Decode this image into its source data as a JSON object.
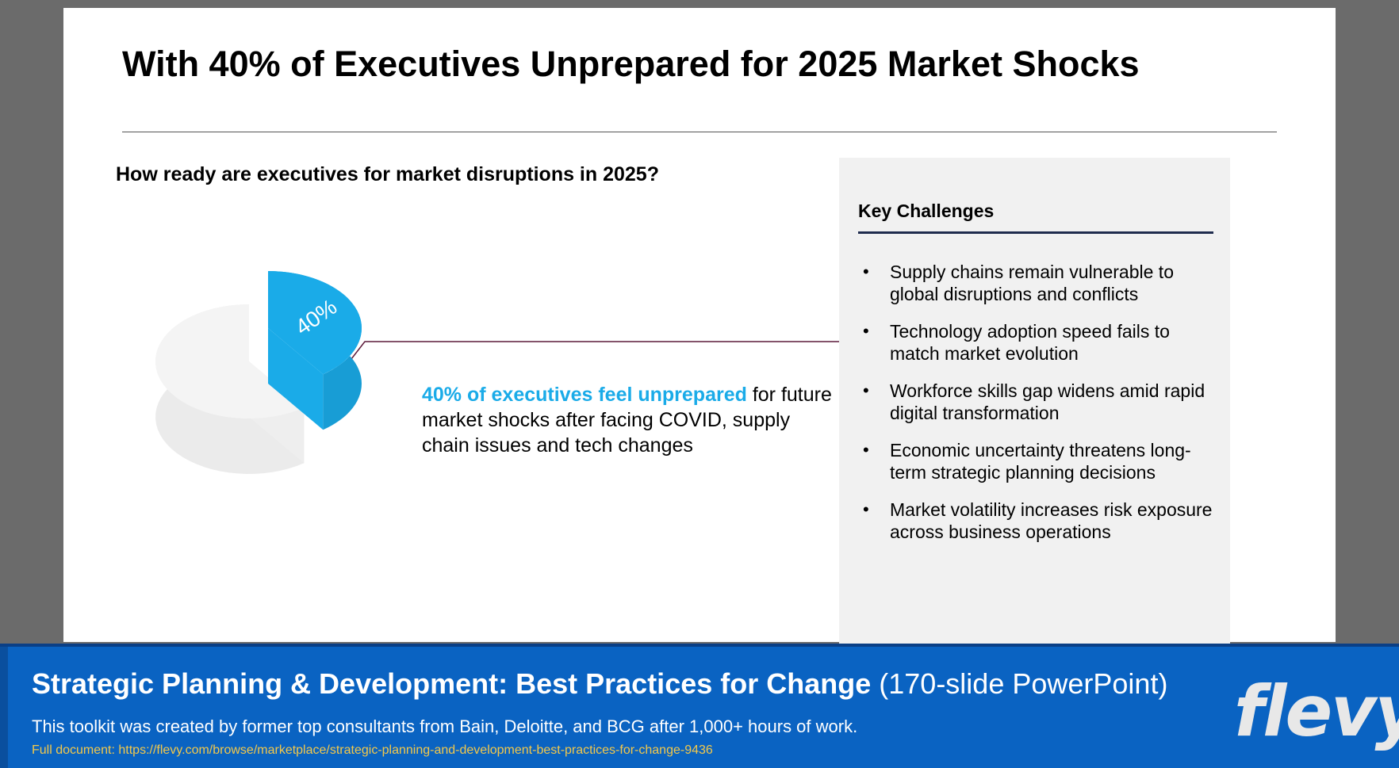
{
  "slide": {
    "title": "With 40% of Executives Unprepared for 2025 Market Shocks",
    "question": "How ready are executives for market disruptions in 2025?",
    "callout": {
      "highlight": "40% of executives feel unprepared",
      "rest": " for future market shocks after facing COVID, supply chain issues and tech changes"
    }
  },
  "chart_data": {
    "type": "pie",
    "style": "3d-exploded",
    "slices": [
      {
        "label": "40%",
        "value": 40,
        "color": "#1aabe8"
      },
      {
        "label": "",
        "value": 60,
        "color": "#f2f2f2"
      }
    ]
  },
  "panel": {
    "title": "Key Challenges",
    "bullet": "•",
    "items": [
      "Supply chains remain vulnerable to global disruptions and conflicts",
      "Technology adoption speed fails to match market evolution",
      "Workforce skills gap widens amid rapid digital transformation",
      "Economic uncertainty threatens long-term strategic planning decisions",
      "Market volatility increases risk exposure across business operations"
    ]
  },
  "banner": {
    "title_strong": "Strategic Planning & Development: Best Practices for Change",
    "title_light": " (170-slide PowerPoint)",
    "description": "This toolkit was created by former top consultants from Bain, Deloitte, and BCG after 1,000+ hours of work.",
    "link": "Full document: https://flevy.com/browse/marketplace/strategic-planning-and-development-best-practices-for-change-9436",
    "logo": "flevy"
  }
}
